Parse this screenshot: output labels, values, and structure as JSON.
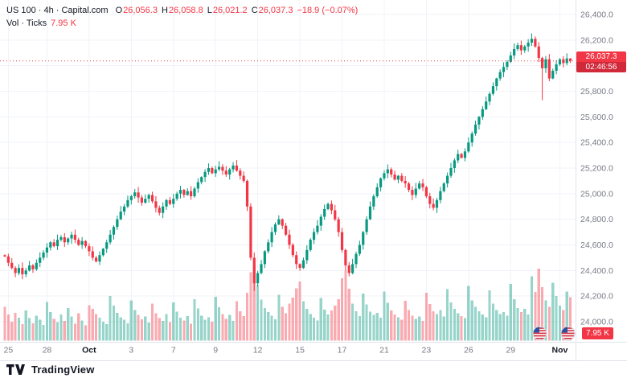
{
  "header": {
    "title": "US 100 · 4h · Capital.com",
    "ohlc": {
      "o_label": "O",
      "o": "26,056.3",
      "h_label": "H",
      "h": "26,058.8",
      "l_label": "L",
      "l": "26,021.2",
      "c_label": "C",
      "c": "26,037.3",
      "change": "−18.9 (−0.07%)"
    },
    "volume_row": {
      "label": "Vol · Ticks",
      "value": "7.95 K"
    }
  },
  "last_price": {
    "label": "26,037.3",
    "countdown": "02:46:56"
  },
  "volume_badge": "7.95 K",
  "footer": {
    "logo_text": "TradingView"
  },
  "colors": {
    "up": "#089981",
    "down": "#f23645",
    "vol_up": "rgba(8,153,129,0.42)",
    "vol_down": "rgba(242,54,69,0.42)",
    "grid": "#f0f3fa",
    "axis_border": "#e0e3eb",
    "axis_text": "#787b86",
    "text": "#131722",
    "badge": "#f23645"
  },
  "price_axis": {
    "ticks": [
      {
        "value": 26400,
        "label": "26,400.0"
      },
      {
        "value": 26200,
        "label": "26,200.0"
      },
      {
        "value": 26000,
        "label": "26,000.0"
      },
      {
        "value": 25800,
        "label": "25,800.0"
      },
      {
        "value": 25600,
        "label": "25,600.0"
      },
      {
        "value": 25400,
        "label": "25,400.0"
      },
      {
        "value": 25200,
        "label": "25,200.0"
      },
      {
        "value": 25000,
        "label": "25,000.0"
      },
      {
        "value": 24800,
        "label": "24,800.0"
      },
      {
        "value": 24600,
        "label": "24,600.0"
      },
      {
        "value": 24400,
        "label": "24,400.0"
      },
      {
        "value": 24200,
        "label": "24,200.0"
      },
      {
        "value": 24000,
        "label": "24,000.0"
      }
    ]
  },
  "time_axis": {
    "ticks": [
      {
        "index": 1,
        "label": "25",
        "strong": false
      },
      {
        "index": 12,
        "label": "28",
        "strong": false
      },
      {
        "index": 24,
        "label": "Oct",
        "strong": true
      },
      {
        "index": 36,
        "label": "3",
        "strong": false
      },
      {
        "index": 48,
        "label": "7",
        "strong": false
      },
      {
        "index": 60,
        "label": "9",
        "strong": false
      },
      {
        "index": 72,
        "label": "12",
        "strong": false
      },
      {
        "index": 84,
        "label": "15",
        "strong": false
      },
      {
        "index": 96,
        "label": "17",
        "strong": false
      },
      {
        "index": 108,
        "label": "21",
        "strong": false
      },
      {
        "index": 120,
        "label": "23",
        "strong": false
      },
      {
        "index": 132,
        "label": "26",
        "strong": false
      },
      {
        "index": 144,
        "label": "29",
        "strong": false
      },
      {
        "index": 158,
        "label": "Nov",
        "strong": true
      }
    ]
  },
  "chart_data": {
    "type": "candlestick",
    "title": "US 100 · 4h · Capital.com",
    "xlabel": "",
    "ylabel": "",
    "ylim": [
      23950,
      26460
    ],
    "grid": true,
    "interval": "4h",
    "last": {
      "open": 26056.3,
      "high": 26058.8,
      "low": 26021.2,
      "close": 26037.3,
      "change": -18.9,
      "change_pct": -0.07,
      "volume_ticks": "7.95 K"
    },
    "first_open": 24520,
    "closes": [
      24510,
      24460,
      24420,
      24380,
      24420,
      24370,
      24400,
      24440,
      24410,
      24460,
      24500,
      24540,
      24580,
      24620,
      24590,
      24640,
      24660,
      24620,
      24650,
      24680,
      24640,
      24600,
      24630,
      24590,
      24550,
      24500,
      24470,
      24520,
      24570,
      24620,
      24680,
      24740,
      24800,
      24860,
      24900,
      24950,
      24980,
      25010,
      24970,
      24930,
      24960,
      24990,
      24940,
      24890,
      24850,
      24900,
      24950,
      24920,
      24960,
      25000,
      25030,
      24990,
      25020,
      24980,
      25040,
      25090,
      25130,
      25170,
      25200,
      25160,
      25190,
      25210,
      25180,
      25150,
      25190,
      25220,
      25180,
      25140,
      25100,
      24900,
      24500,
      24300,
      24380,
      24450,
      24550,
      24620,
      24700,
      24760,
      24800,
      24750,
      24680,
      24600,
      24520,
      24450,
      24420,
      24480,
      24560,
      24640,
      24700,
      24750,
      24820,
      24880,
      24920,
      24870,
      24800,
      24700,
      24560,
      24440,
      24380,
      24450,
      24530,
      24600,
      24700,
      24800,
      24900,
      24980,
      25050,
      25120,
      25160,
      25190,
      25150,
      25110,
      25140,
      25100,
      25080,
      25030,
      24990,
      25040,
      25080,
      25050,
      24980,
      24920,
      24890,
      24950,
      25020,
      25080,
      25140,
      25200,
      25260,
      25310,
      25280,
      25330,
      25400,
      25470,
      25540,
      25600,
      25660,
      25720,
      25780,
      25840,
      25900,
      25950,
      25990,
      26030,
      26080,
      26130,
      26160,
      26120,
      26150,
      26180,
      26210,
      26150,
      26060,
      25980,
      26050,
      25900,
      25960,
      26010,
      26050,
      26020,
      26056.3,
      26037.3
    ],
    "volumes": [
      6.2,
      4.8,
      3.5,
      5.1,
      4.2,
      3.0,
      5.5,
      4.1,
      3.2,
      4.6,
      3.8,
      2.9,
      7.1,
      5.2,
      4.0,
      3.4,
      4.8,
      3.6,
      6.0,
      4.4,
      3.1,
      5.0,
      3.7,
      2.8,
      6.5,
      5.8,
      4.9,
      4.2,
      3.5,
      3.0,
      8.2,
      6.4,
      5.1,
      4.3,
      3.8,
      3.2,
      7.4,
      5.6,
      4.7,
      3.9,
      4.4,
      3.3,
      6.8,
      5.0,
      4.1,
      3.6,
      4.9,
      3.4,
      7.0,
      5.3,
      4.2,
      3.7,
      4.5,
      3.1,
      7.6,
      5.9,
      4.6,
      3.8,
      4.3,
      3.5,
      8.0,
      6.1,
      4.9,
      4.0,
      4.7,
      3.6,
      7.2,
      5.4,
      4.5,
      8.8,
      12.5,
      13.8,
      10.2,
      7.5,
      6.0,
      5.2,
      4.6,
      3.9,
      8.4,
      6.2,
      5.0,
      6.8,
      7.9,
      9.6,
      10.8,
      7.2,
      5.8,
      4.9,
      4.2,
      3.7,
      7.8,
      5.7,
      4.8,
      5.5,
      6.4,
      7.6,
      11.4,
      12.8,
      9.5,
      6.8,
      5.4,
      4.5,
      8.6,
      6.6,
      5.3,
      4.7,
      5.1,
      4.2,
      9.0,
      6.9,
      5.5,
      4.8,
      4.3,
      3.8,
      7.3,
      5.6,
      4.6,
      4.0,
      4.4,
      3.6,
      8.8,
      6.7,
      5.4,
      4.9,
      5.6,
      4.4,
      9.4,
      7.0,
      5.8,
      5.0,
      4.5,
      4.1,
      10.0,
      7.4,
      6.2,
      5.4,
      4.8,
      4.3,
      9.2,
      6.8,
      5.6,
      4.9,
      5.2,
      4.6,
      10.4,
      7.6,
      6.0,
      5.2,
      5.8,
      4.8,
      11.8,
      8.9,
      13.2,
      9.8,
      7.4,
      6.2,
      10.6,
      8.2,
      6.4,
      5.6,
      9.0,
      7.95
    ],
    "wick_overrides": [
      {
        "i": 71,
        "low": 24240
      },
      {
        "i": 153,
        "low": 25730
      },
      {
        "i": 161,
        "high": 26058.8,
        "low": 26021.2
      }
    ]
  }
}
